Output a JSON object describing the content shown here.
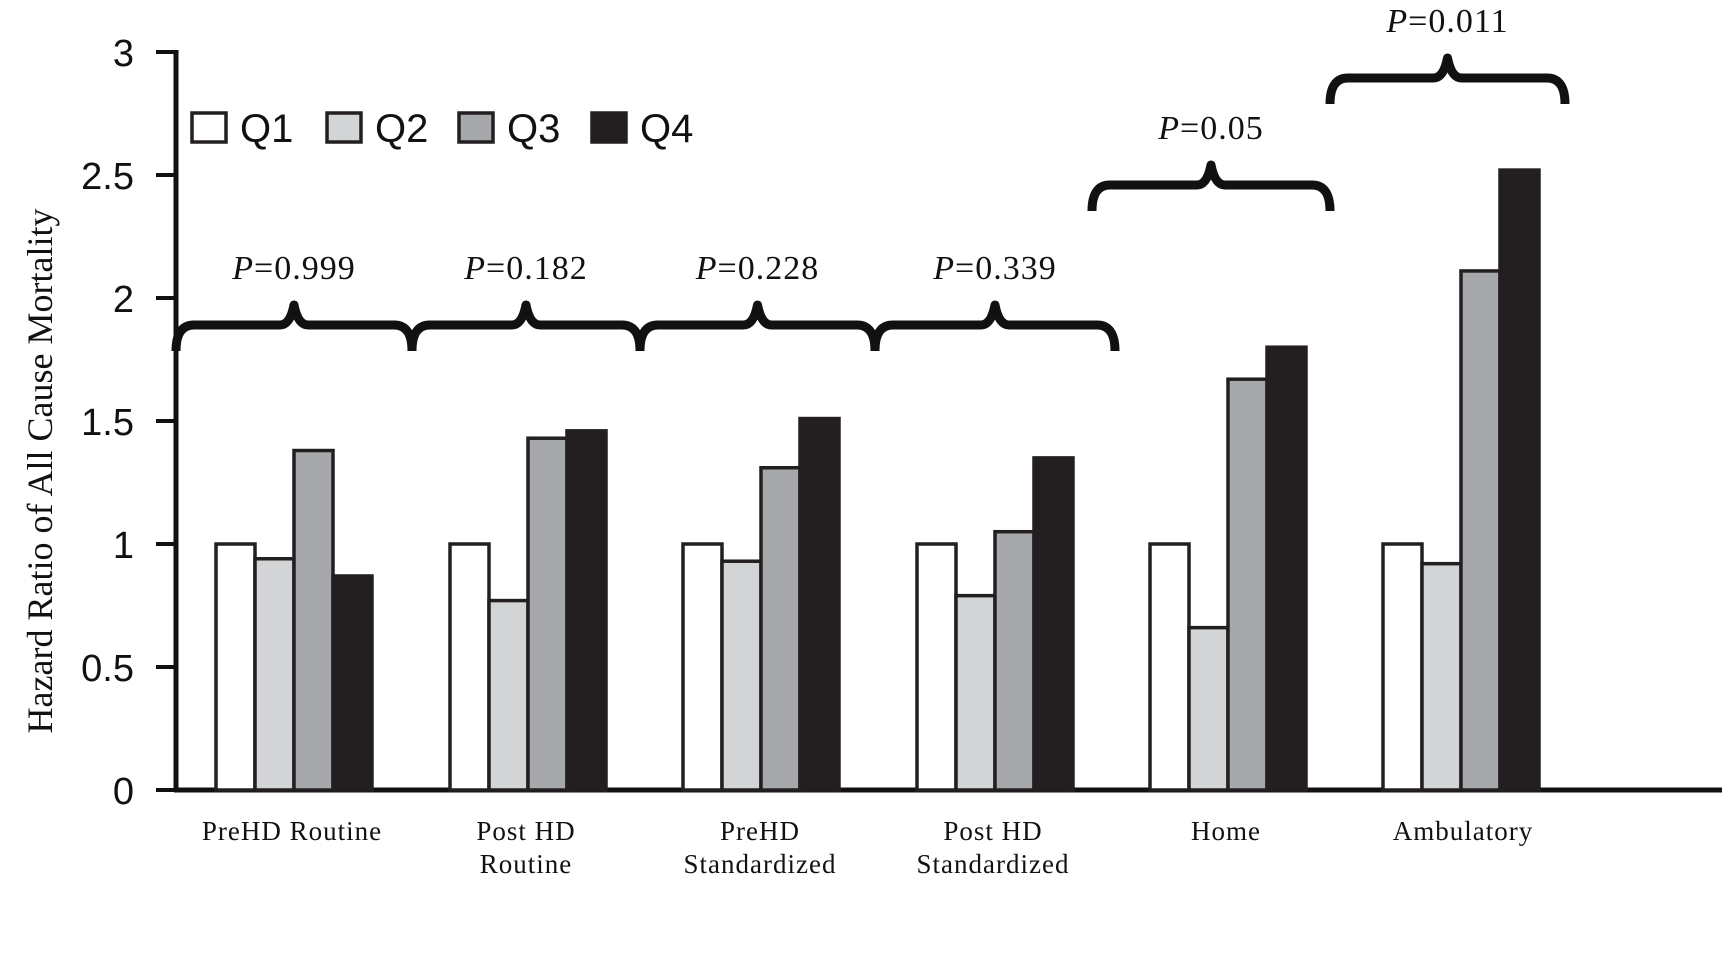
{
  "chart_data": {
    "type": "bar",
    "ylabel": "Hazard Ratio of All Cause Mortality",
    "xlabel": "",
    "ylim": [
      0,
      3
    ],
    "yticks": [
      "0",
      "0.5",
      "1",
      "1.5",
      "2",
      "2.5",
      "3"
    ],
    "grid": false,
    "legend_placement": "top-left",
    "categories": [
      [
        "PreHD Routine"
      ],
      [
        "Post HD",
        "Routine"
      ],
      [
        "PreHD",
        "Standardized"
      ],
      [
        "Post HD",
        "Standardized"
      ],
      [
        "Home"
      ],
      [
        "Ambulatory"
      ]
    ],
    "series": [
      {
        "name": "Q1",
        "color": "#ffffff",
        "values": [
          1.0,
          1.0,
          1.0,
          1.0,
          1.0,
          1.0
        ]
      },
      {
        "name": "Q2",
        "color": "#d3d4d6",
        "values": [
          0.94,
          0.77,
          0.93,
          0.79,
          0.66,
          0.92
        ]
      },
      {
        "name": "Q3",
        "color": "#a7a8ab",
        "values": [
          1.38,
          1.43,
          1.31,
          1.05,
          1.67,
          2.11
        ]
      },
      {
        "name": "Q4",
        "color": "#231f20",
        "values": [
          0.87,
          1.46,
          1.51,
          1.35,
          1.8,
          2.52
        ]
      }
    ],
    "p_values": [
      {
        "prefix": "P",
        "value": "=0.999"
      },
      {
        "prefix": "P",
        "value": "=0.182"
      },
      {
        "prefix": "P",
        "value": "=0.228"
      },
      {
        "prefix": "P",
        "value": "=0.339"
      },
      {
        "prefix": "P",
        "value": "=0.05"
      },
      {
        "prefix": "P",
        "value": "=0.011"
      }
    ]
  }
}
